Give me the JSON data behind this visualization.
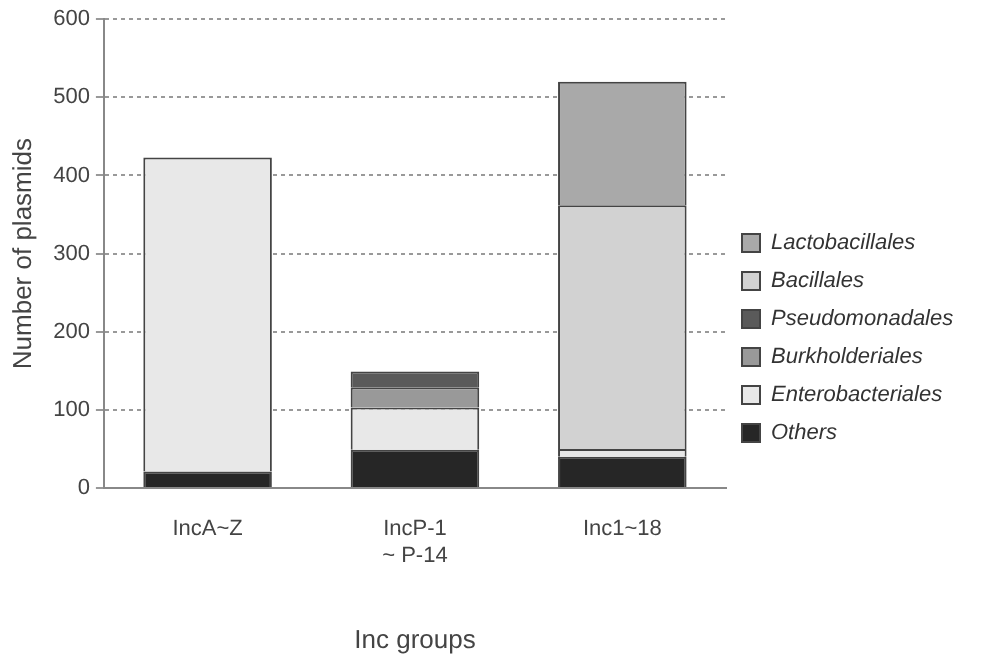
{
  "chart_data": {
    "type": "bar",
    "stacked": true,
    "xlabel": "Inc groups",
    "ylabel": "Number of plasmids",
    "categories": [
      "IncA~Z",
      "IncP-1\n~ P-14",
      "Inc1~18"
    ],
    "series": [
      {
        "name": "Others",
        "color": "#262626",
        "values": [
          21,
          49,
          40
        ]
      },
      {
        "name": "Enterobacteriales",
        "color": "#e8e8e8",
        "values": [
          402,
          54,
          10
        ]
      },
      {
        "name": "Burkholderiales",
        "color": "#999999",
        "values": [
          null,
          26,
          null
        ]
      },
      {
        "name": "Pseudomonadales",
        "color": "#5a5a5a",
        "values": [
          null,
          20,
          null
        ]
      },
      {
        "name": "Bacillales",
        "color": "#d2d2d2",
        "values": [
          null,
          null,
          312
        ]
      },
      {
        "name": "Lactobacillales",
        "color": "#a9a9a9",
        "values": [
          null,
          null,
          158
        ]
      }
    ],
    "ylim": [
      0,
      600
    ],
    "yticks": [
      0,
      100,
      200,
      300,
      400,
      500,
      600
    ],
    "grid": "y",
    "legend": "right"
  }
}
